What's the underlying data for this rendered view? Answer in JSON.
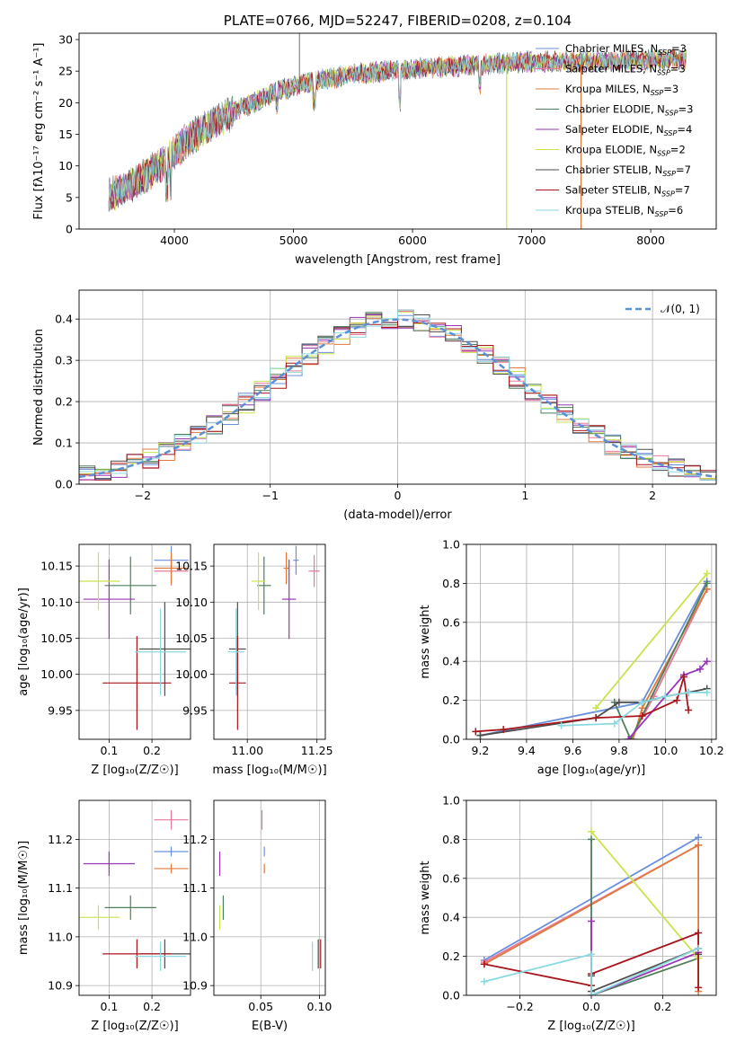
{
  "colors": [
    "#6a8fdd",
    "#e8799a",
    "#e07a3c",
    "#4f7f5a",
    "#9a35b5",
    "#c9e34a",
    "#4d4d4d",
    "#a9151d",
    "#8ad9e0"
  ],
  "chart_data": [
    {
      "id": "spectrum",
      "type": "line",
      "title": "PLATE=0766, MJD=52247, FIBERID=0208, z=0.104",
      "xlabel": "wavelength [Angstrom, rest frame]",
      "ylabel": "Flux [fλ10⁻¹⁷ erg cm⁻² s⁻¹ A⁻¹]",
      "xlim": [
        3200,
        8550
      ],
      "ylim": [
        0,
        31
      ],
      "xticks": [
        4000,
        5000,
        6000,
        7000,
        8000
      ],
      "yticks": [
        0,
        5,
        10,
        15,
        20,
        25,
        30
      ],
      "grid": false,
      "legend_position": "top-right",
      "legend": [
        {
          "name": "Chabrier MILES",
          "nssp": "3"
        },
        {
          "name": "Salpeter MILES",
          "nssp": "3"
        },
        {
          "name": "Kroupa MILES",
          "nssp": "3"
        },
        {
          "name": "Chabrier ELODIE",
          "nssp": "3"
        },
        {
          "name": "Salpeter ELODIE",
          "nssp": "4"
        },
        {
          "name": "Kroupa ELODIE",
          "nssp": "2"
        },
        {
          "name": "Chabrier STELIB",
          "nssp": "7"
        },
        {
          "name": "Salpeter STELIB",
          "nssp": "7"
        },
        {
          "name": "Kroupa STELIB",
          "nssp": "6"
        }
      ],
      "continuum": {
        "x": [
          3450,
          3600,
          3800,
          3950,
          4100,
          4300,
          4600,
          4900,
          5200,
          5500,
          5800,
          6100,
          6500,
          7000,
          7500,
          8000,
          8300
        ],
        "y": [
          5.5,
          6.5,
          9,
          11,
          14,
          16.5,
          19.5,
          22,
          23.5,
          24.5,
          25,
          25.5,
          26,
          26.5,
          26.5,
          26.8,
          27
        ]
      }
    },
    {
      "id": "residuals",
      "type": "line",
      "xlabel": "(data-model)/error",
      "ylabel": "Normed distribution",
      "xlim": [
        -2.5,
        2.5
      ],
      "ylim": [
        0,
        0.47
      ],
      "xticks": [
        -2,
        -1,
        0,
        1,
        2
      ],
      "yticks": [
        0.0,
        0.1,
        0.2,
        0.3,
        0.4
      ],
      "grid": true,
      "legend_position": "top-right",
      "legend": [
        "𝒩(0, 1)"
      ]
    },
    {
      "id": "age-vs-Z",
      "type": "scatter",
      "xlabel": "Z [log₁₀(Z/Z☉)]",
      "ylabel": "age  [log₁₀(age/yr)]",
      "xlim": [
        0.03,
        0.29
      ],
      "ylim": [
        9.91,
        10.18
      ],
      "xticks": [
        0.1,
        0.2
      ],
      "yticks": [
        9.95,
        10.0,
        10.05,
        10.1,
        10.15
      ],
      "grid": true,
      "points": [
        {
          "x": 0.245,
          "y": 10.158,
          "xerr": 0.04,
          "yerr": 0.02
        },
        {
          "x": 0.245,
          "y": 10.143,
          "xerr": 0.04,
          "yerr": 0.02
        },
        {
          "x": 0.245,
          "y": 10.147,
          "xerr": 0.04,
          "yerr": 0.022
        },
        {
          "x": 0.15,
          "y": 10.123,
          "xerr": 0.06,
          "yerr": 0.04
        },
        {
          "x": 0.1,
          "y": 10.104,
          "xerr": 0.06,
          "yerr": 0.055
        },
        {
          "x": 0.075,
          "y": 10.129,
          "xerr": 0.05,
          "yerr": 0.04
        },
        {
          "x": 0.23,
          "y": 10.035,
          "xerr": 0.06,
          "yerr": 0.065
        },
        {
          "x": 0.165,
          "y": 9.988,
          "xerr": 0.08,
          "yerr": 0.065
        },
        {
          "x": 0.22,
          "y": 10.031,
          "xerr": 0.06,
          "yerr": 0.06
        }
      ]
    },
    {
      "id": "age-vs-mass",
      "type": "scatter",
      "xlabel": "mass [log₁₀(M/M☉)]",
      "xlim": [
        10.88,
        11.28
      ],
      "ylim": [
        9.91,
        10.18
      ],
      "xticks": [
        11.0,
        11.25
      ],
      "yticks": [
        9.95,
        10.0,
        10.05,
        10.1,
        10.15
      ],
      "grid": true,
      "points": [
        {
          "x": 11.175,
          "y": 10.158,
          "xerr": 0.01,
          "yerr": 0.02
        },
        {
          "x": 11.24,
          "y": 10.143,
          "xerr": 0.02,
          "yerr": 0.022
        },
        {
          "x": 11.14,
          "y": 10.147,
          "xerr": 0.01,
          "yerr": 0.022
        },
        {
          "x": 11.06,
          "y": 10.123,
          "xerr": 0.025,
          "yerr": 0.04
        },
        {
          "x": 11.15,
          "y": 10.104,
          "xerr": 0.025,
          "yerr": 0.055
        },
        {
          "x": 11.04,
          "y": 10.129,
          "xerr": 0.025,
          "yerr": 0.04
        },
        {
          "x": 10.965,
          "y": 10.035,
          "xerr": 0.03,
          "yerr": 0.065
        },
        {
          "x": 10.965,
          "y": 9.988,
          "xerr": 0.03,
          "yerr": 0.065
        },
        {
          "x": 10.96,
          "y": 10.031,
          "xerr": 0.03,
          "yerr": 0.06
        }
      ]
    },
    {
      "id": "weight-vs-age",
      "type": "line",
      "xlabel": "age  [log₁₀(age/yr)]",
      "ylabel": "mass weight",
      "xlim": [
        9.14,
        10.22
      ],
      "ylim": [
        0,
        1.0
      ],
      "xticks": [
        9.2,
        9.4,
        9.6,
        9.8,
        10.0,
        10.2
      ],
      "yticks": [
        0.0,
        0.2,
        0.4,
        0.6,
        0.8,
        1.0
      ],
      "grid": true,
      "series": [
        {
          "x": [
            9.2,
            9.9,
            10.18
          ],
          "y": [
            0.02,
            0.19,
            0.81
          ]
        },
        {
          "x": [
            9.85,
            9.95,
            10.18
          ],
          "y": [
            0.0,
            0.22,
            0.77
          ]
        },
        {
          "x": [
            9.86,
            9.9,
            10.18
          ],
          "y": [
            0.0,
            0.16,
            0.77
          ]
        },
        {
          "x": [
            9.78,
            9.85,
            10.18
          ],
          "y": [
            0.19,
            0.0,
            0.8
          ]
        },
        {
          "x": [
            9.84,
            10.08,
            10.15,
            10.18
          ],
          "y": [
            0.0,
            0.33,
            0.36,
            0.4
          ]
        },
        {
          "x": [
            9.7,
            10.18
          ],
          "y": [
            0.16,
            0.85
          ]
        },
        {
          "x": [
            9.2,
            9.7,
            9.8,
            9.9,
            10.0,
            10.1,
            10.18
          ],
          "y": [
            0.02,
            0.11,
            0.19,
            0.19,
            0.22,
            0.24,
            0.26
          ]
        },
        {
          "x": [
            9.18,
            9.3,
            9.7,
            9.9,
            10.05,
            10.08,
            10.1
          ],
          "y": [
            0.04,
            0.05,
            0.11,
            0.12,
            0.2,
            0.32,
            0.15
          ]
        },
        {
          "x": [
            9.55,
            9.78,
            9.9,
            10.0,
            10.1,
            10.18
          ],
          "y": [
            0.07,
            0.08,
            0.19,
            0.22,
            0.24,
            0.24
          ]
        }
      ]
    },
    {
      "id": "mass-vs-Z",
      "type": "scatter",
      "xlabel": "Z [log₁₀(Z/Z☉)]",
      "ylabel": "mass [log₁₀(M/M☉)]",
      "xlim": [
        0.03,
        0.29
      ],
      "ylim": [
        10.88,
        11.28
      ],
      "xticks": [
        0.1,
        0.2
      ],
      "yticks": [
        10.9,
        11.0,
        11.1,
        11.2
      ],
      "grid": true,
      "points": [
        {
          "x": 0.245,
          "y": 11.175,
          "xerr": 0.04,
          "yerr": 0.01
        },
        {
          "x": 0.245,
          "y": 11.24,
          "xerr": 0.04,
          "yerr": 0.02
        },
        {
          "x": 0.245,
          "y": 11.14,
          "xerr": 0.04,
          "yerr": 0.01
        },
        {
          "x": 0.15,
          "y": 11.06,
          "xerr": 0.06,
          "yerr": 0.025
        },
        {
          "x": 0.1,
          "y": 11.15,
          "xerr": 0.06,
          "yerr": 0.025
        },
        {
          "x": 0.075,
          "y": 11.04,
          "xerr": 0.05,
          "yerr": 0.025
        },
        {
          "x": 0.23,
          "y": 10.965,
          "xerr": 0.06,
          "yerr": 0.03
        },
        {
          "x": 0.165,
          "y": 10.965,
          "xerr": 0.08,
          "yerr": 0.03
        },
        {
          "x": 0.22,
          "y": 10.96,
          "xerr": 0.06,
          "yerr": 0.03
        }
      ]
    },
    {
      "id": "mass-vs-ebv",
      "type": "scatter",
      "xlabel": "E(B-V)",
      "xlim": [
        0.01,
        0.105
      ],
      "ylim": [
        10.88,
        11.28
      ],
      "xticks": [
        0.05,
        0.1
      ],
      "yticks": [
        10.9,
        11.0,
        11.1,
        11.2
      ],
      "grid": true,
      "points": [
        {
          "x": 0.053,
          "y": 11.175,
          "xerr": 0.0,
          "yerr": 0.01
        },
        {
          "x": 0.051,
          "y": 11.24,
          "xerr": 0.0,
          "yerr": 0.02
        },
        {
          "x": 0.053,
          "y": 11.14,
          "xerr": 0.0,
          "yerr": 0.01
        },
        {
          "x": 0.018,
          "y": 11.06,
          "xerr": 0.0,
          "yerr": 0.025
        },
        {
          "x": 0.015,
          "y": 11.15,
          "xerr": 0.0,
          "yerr": 0.025
        },
        {
          "x": 0.015,
          "y": 11.04,
          "xerr": 0.0,
          "yerr": 0.025
        },
        {
          "x": 0.099,
          "y": 10.965,
          "xerr": 0.0,
          "yerr": 0.03
        },
        {
          "x": 0.101,
          "y": 10.965,
          "xerr": 0.0,
          "yerr": 0.03
        },
        {
          "x": 0.094,
          "y": 10.96,
          "xerr": 0.0,
          "yerr": 0.03
        }
      ]
    },
    {
      "id": "weight-vs-Z",
      "type": "line",
      "xlabel": "Z [log₁₀(Z/Z☉)]",
      "ylabel": "mass weight",
      "xlim": [
        -0.35,
        0.35
      ],
      "ylim": [
        0,
        1.0
      ],
      "xticks": [
        -0.2,
        0.0,
        0.2
      ],
      "yticks": [
        0.0,
        0.2,
        0.4,
        0.6,
        0.8,
        1.0
      ],
      "grid": true,
      "series": [
        {
          "x": [
            -0.3,
            0.3
          ],
          "y": [
            0.18,
            0.81
          ]
        },
        {
          "x": [
            -0.3,
            0.3
          ],
          "y": [
            0.17,
            0.77
          ]
        },
        {
          "x": [
            -0.3,
            0.3,
            0.3
          ],
          "y": [
            0.16,
            0.77,
            0.02
          ]
        },
        {
          "x": [
            0.0,
            0.0,
            0.3
          ],
          "y": [
            0.8,
            0.0,
            0.19
          ]
        },
        {
          "x": [
            0.0,
            0.0,
            0.3
          ],
          "y": [
            0.38,
            0.0,
            0.22
          ]
        },
        {
          "x": [
            0.0,
            0.3
          ],
          "y": [
            0.84,
            0.19
          ]
        },
        {
          "x": [
            0.0,
            0.0,
            0.3,
            0.3
          ],
          "y": [
            0.1,
            0.02,
            0.24,
            0.21
          ]
        },
        {
          "x": [
            -0.3,
            0.0,
            0.0,
            0.3,
            0.3
          ],
          "y": [
            0.16,
            0.05,
            0.11,
            0.32,
            0.04
          ]
        },
        {
          "x": [
            -0.3,
            0.0,
            0.0,
            0.3
          ],
          "y": [
            0.07,
            0.21,
            0.0,
            0.24
          ]
        }
      ]
    }
  ]
}
